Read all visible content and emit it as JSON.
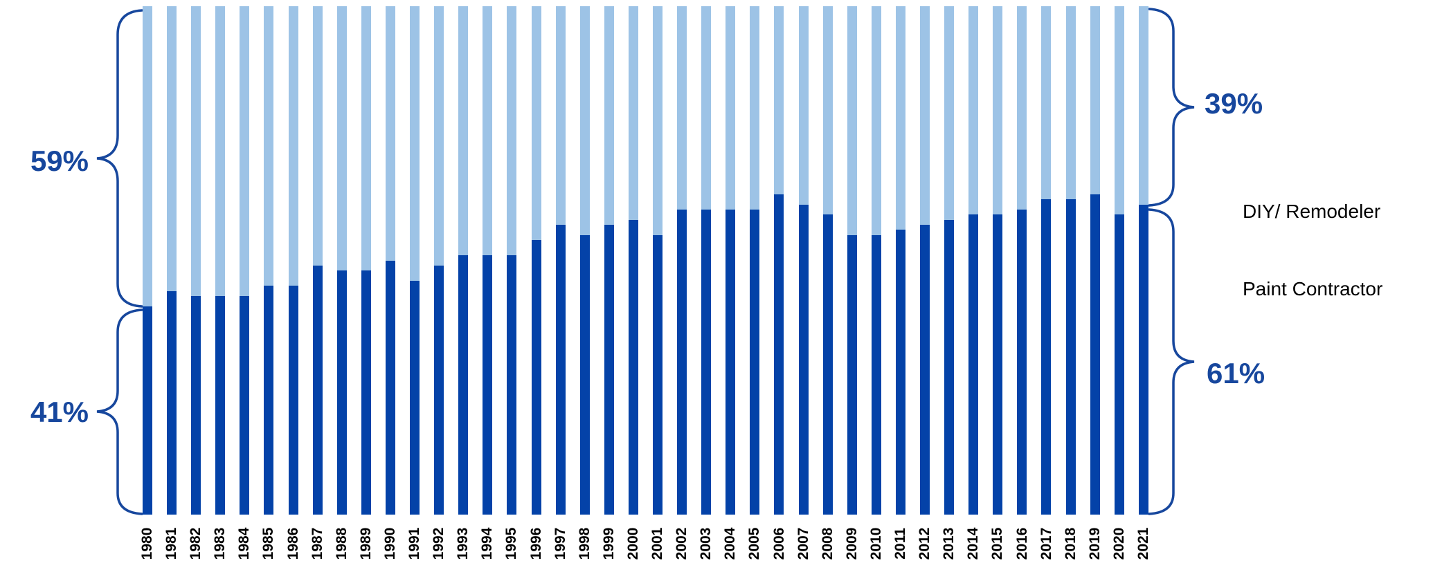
{
  "chart_data": {
    "type": "bar",
    "stacked": true,
    "orientation": "vertical",
    "title": "",
    "xlabel": "",
    "ylabel": "",
    "ylim": [
      0,
      100
    ],
    "grid": false,
    "x_tick_rotation": 90,
    "categories": [
      1980,
      1981,
      1982,
      1983,
      1984,
      1985,
      1986,
      1987,
      1988,
      1989,
      1990,
      1991,
      1992,
      1993,
      1994,
      1995,
      1996,
      1997,
      1998,
      1999,
      2000,
      2001,
      2002,
      2003,
      2004,
      2005,
      2006,
      2007,
      2008,
      2009,
      2010,
      2011,
      2012,
      2013,
      2014,
      2015,
      2016,
      2017,
      2018,
      2019,
      2020,
      2021
    ],
    "series": [
      {
        "name": "Paint Contractor",
        "color": "#0442A8",
        "values": [
          41,
          44,
          43,
          43,
          43,
          45,
          45,
          49,
          48,
          48,
          50,
          46,
          49,
          51,
          51,
          51,
          54,
          57,
          55,
          57,
          58,
          55,
          60,
          60,
          60,
          60,
          63,
          61,
          59,
          55,
          55,
          56,
          57,
          58,
          59,
          59,
          60,
          62,
          62,
          63,
          59,
          61
        ]
      },
      {
        "name": "DIY/ Remodeler",
        "color": "#9DC3E6",
        "values": [
          59,
          56,
          57,
          57,
          57,
          55,
          55,
          51,
          52,
          52,
          50,
          54,
          51,
          49,
          49,
          49,
          46,
          43,
          45,
          43,
          42,
          45,
          40,
          40,
          40,
          40,
          37,
          39,
          41,
          45,
          45,
          44,
          43,
          42,
          41,
          41,
          40,
          38,
          38,
          37,
          41,
          39
        ]
      }
    ],
    "legend_position": "right"
  },
  "annotations": {
    "left_top": "59%",
    "left_bottom": "41%",
    "right_top": "39%",
    "right_bottom": "61%",
    "brace_color": "#17479D"
  },
  "legend": {
    "items": [
      {
        "label": "DIY/ Remodeler",
        "color": "#9DC3E6"
      },
      {
        "label": "Paint Contractor",
        "color": "#0442A8"
      }
    ]
  }
}
